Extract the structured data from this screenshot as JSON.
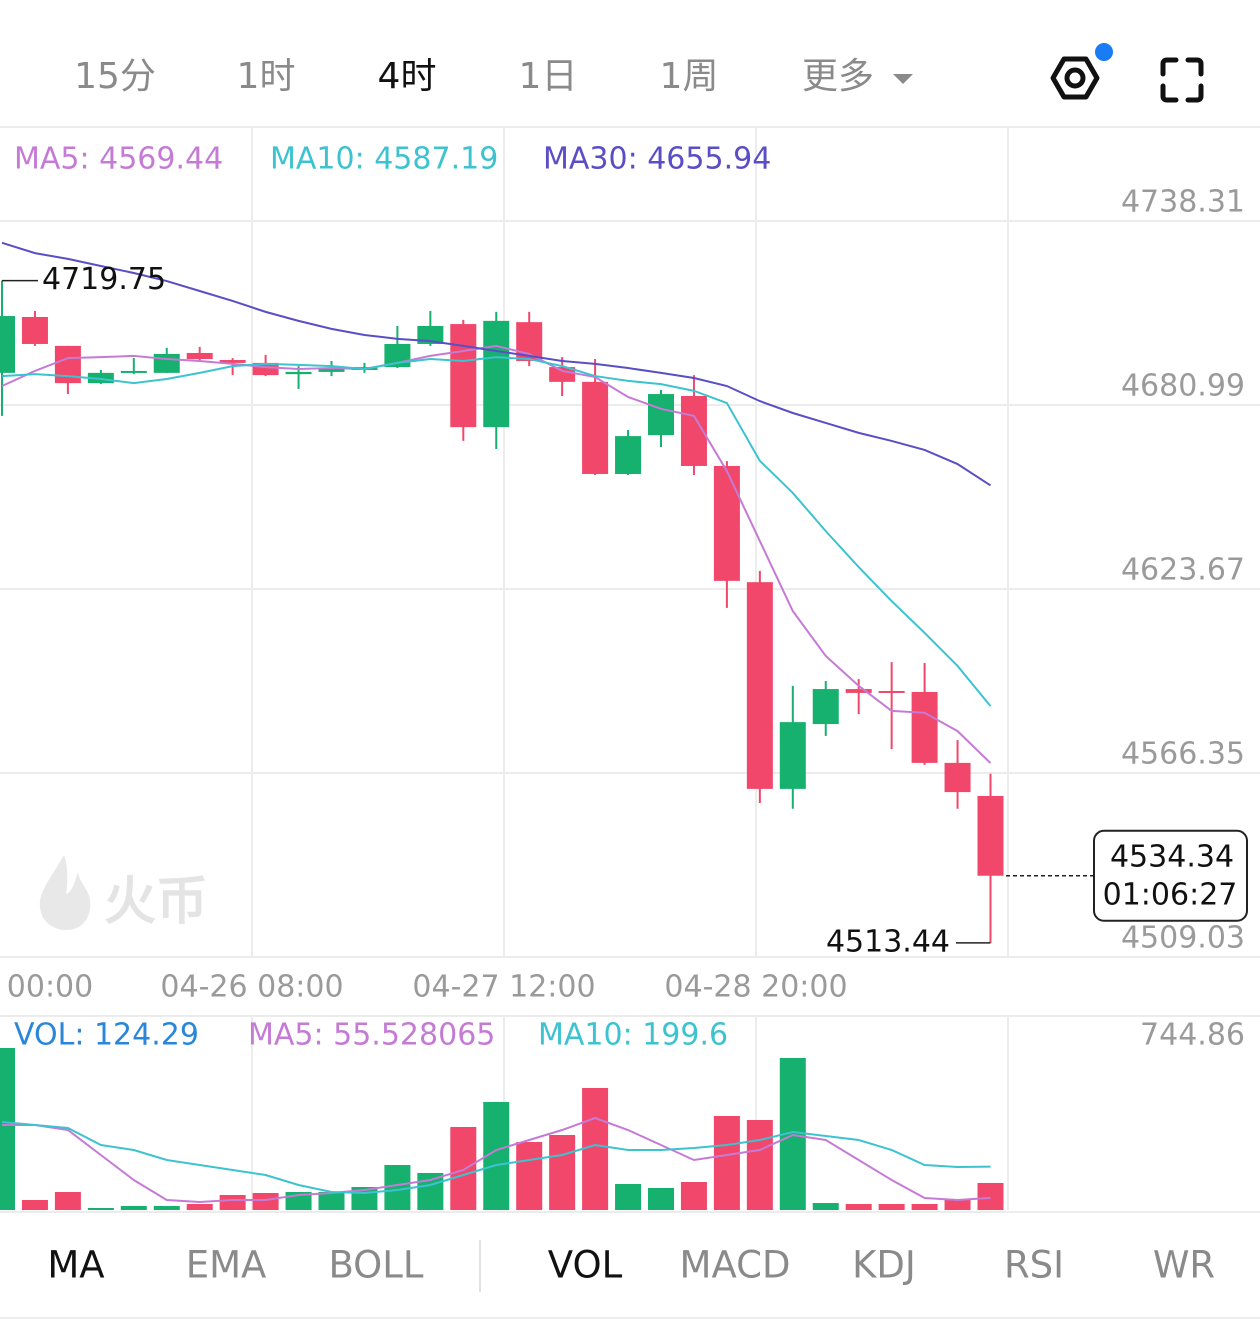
{
  "toolbar": {
    "tabs": [
      "15分",
      "1时",
      "4时",
      "1日",
      "1周",
      "更多"
    ],
    "selected": 2
  },
  "watermark": "火币",
  "indicator_tabs": {
    "main": [
      "MA",
      "EMA",
      "BOLL"
    ],
    "sub": [
      "VOL",
      "MACD",
      "KDJ",
      "RSI",
      "WR"
    ]
  },
  "chart_data": [
    {
      "type": "candlestick",
      "x_labels": [
        "00:00",
        "04-26 08:00",
        "04-27 12:00",
        "04-28 20:00"
      ],
      "ylim": [
        4509.03,
        4767.28
      ],
      "yticks": [
        4738.31,
        4680.99,
        4623.67,
        4566.35,
        4509.03
      ],
      "grid": true,
      "up_color": "#16b06f",
      "down_color": "#f0476a",
      "open": [
        4691.0,
        4708.4,
        4699.4,
        4687.8,
        4691.0,
        4691.0,
        4697.2,
        4695.0,
        4694.1,
        4690.6,
        4691.3,
        4691.9,
        4692.8,
        4700.0,
        4706.2,
        4674.1,
        4706.8,
        4692.8,
        4688.2,
        4659.5,
        4671.6,
        4683.8,
        4662.0,
        4625.8,
        4561.4,
        4581.6,
        4592.5,
        4591.9,
        4591.6,
        4569.5,
        4559.2
      ],
      "close": [
        4708.7,
        4700.0,
        4687.8,
        4691.0,
        4691.6,
        4696.9,
        4695.3,
        4694.1,
        4690.3,
        4691.3,
        4692.5,
        4692.8,
        4700.0,
        4705.6,
        4674.1,
        4707.2,
        4694.7,
        4688.2,
        4659.5,
        4671.3,
        4684.4,
        4662.0,
        4626.2,
        4561.4,
        4582.2,
        4592.5,
        4591.3,
        4591.3,
        4569.5,
        4560.4,
        4534.34
      ],
      "high": [
        4719.75,
        4710.3,
        4699.4,
        4691.9,
        4695.6,
        4698.8,
        4699.1,
        4695.6,
        4696.6,
        4693.1,
        4694.7,
        4694.1,
        4705.6,
        4710.3,
        4707.5,
        4710.0,
        4710.0,
        4695.9,
        4695.3,
        4673.2,
        4685.7,
        4690.3,
        4663.5,
        4629.3,
        4593.5,
        4595.0,
        4595.6,
        4600.9,
        4600.6,
        4576.6,
        4566.1
      ],
      "low": [
        4677.6,
        4699.4,
        4684.4,
        4687.5,
        4690.6,
        4691.0,
        4694.7,
        4690.3,
        4690.0,
        4686.0,
        4690.0,
        4691.0,
        4692.5,
        4699.4,
        4669.8,
        4667.3,
        4693.1,
        4683.8,
        4659.2,
        4659.2,
        4667.9,
        4659.2,
        4617.8,
        4557.0,
        4555.2,
        4577.9,
        4584.7,
        4573.8,
        4568.9,
        4555.2,
        4513.44
      ],
      "countdown": "01:06:27",
      "series": [
        {
          "name": "MA5: 4569.44",
          "color": "#c57bd6",
          "values": [
            4686.9,
            4691.6,
            4695.6,
            4695.9,
            4696.3,
            4695.3,
            4694.7,
            4693.8,
            4692.8,
            4692.2,
            4692.5,
            4692.2,
            4694.1,
            4696.3,
            4697.8,
            4699.4,
            4696.9,
            4691.6,
            4689.7,
            4683.5,
            4679.8,
            4677.6,
            4660.4,
            4638.6,
            4616.8,
            4602.8,
            4593.5,
            4585.7,
            4585.1,
            4579.4,
            4569.44
          ]
        },
        {
          "name": "MA10: 4587.19",
          "color": "#3cc3cf",
          "values": [
            4690.0,
            4690.6,
            4690.0,
            4689.1,
            4687.8,
            4689.1,
            4691.0,
            4693.1,
            4693.8,
            4693.5,
            4693.1,
            4692.2,
            4694.1,
            4695.3,
            4694.7,
            4695.9,
            4695.3,
            4693.1,
            4690.0,
            4688.5,
            4687.5,
            4685.4,
            4681.6,
            4663.6,
            4653.6,
            4641.7,
            4630.5,
            4619.9,
            4610.0,
            4599.7,
            4587.19
          ]
        },
        {
          "name": "MA30: 4655.94",
          "color": "#5a4ec6",
          "values": [
            4731.5,
            4728.3,
            4726.5,
            4724.3,
            4722.1,
            4719.6,
            4716.5,
            4713.4,
            4710.0,
            4707.2,
            4704.7,
            4702.8,
            4701.6,
            4700.9,
            4699.4,
            4697.8,
            4696.3,
            4694.7,
            4693.8,
            4692.5,
            4691.0,
            4689.4,
            4686.9,
            4682.2,
            4678.5,
            4675.4,
            4672.3,
            4669.8,
            4667.0,
            4662.6,
            4655.94
          ]
        }
      ]
    },
    {
      "type": "bar",
      "ylim": [
        0,
        744.86
      ],
      "yticks": [
        744.86
      ],
      "series": [
        {
          "name": "VOL: 124.29",
          "color": "#2a86d8",
          "values": [
            744.86,
            46.0,
            82.8,
            9.2,
            18.4,
            18.4,
            27.6,
            69.0,
            78.2,
            82.8,
            82.8,
            105.8,
            206.9,
            170.1,
            381.6,
            496.6,
            312.7,
            344.9,
            561.0,
            119.5,
            101.2,
            128.7,
            432.2,
            413.8,
            698.9,
            32.2,
            27.6,
            27.6,
            27.6,
            46.0,
            124.29
          ]
        },
        {
          "name": "MA5: 55.528065",
          "color": "#c57bd6",
          "values": [
            390.8,
            390.8,
            367.8,
            252.9,
            137.9,
            46.0,
            36.8,
            46.0,
            46.0,
            69.0,
            78.2,
            92.0,
            115.0,
            137.9,
            183.9,
            275.9,
            321.9,
            367.8,
            423.0,
            367.8,
            298.9,
            229.9,
            252.9,
            275.9,
            344.9,
            321.9,
            229.9,
            137.9,
            55.2,
            46.0,
            55.528065
          ]
        },
        {
          "name": "MA10: 199.6",
          "color": "#3cc3cf",
          "values": [
            404.6,
            390.8,
            377.0,
            298.9,
            275.9,
            229.9,
            206.9,
            183.9,
            160.9,
            115.0,
            82.8,
            78.2,
            92.0,
            115.0,
            160.9,
            206.9,
            229.9,
            252.9,
            298.9,
            275.9,
            275.9,
            285.1,
            298.9,
            321.9,
            358.6,
            340.3,
            321.9,
            275.9,
            206.9,
            197.7,
            199.6
          ]
        }
      ]
    }
  ]
}
